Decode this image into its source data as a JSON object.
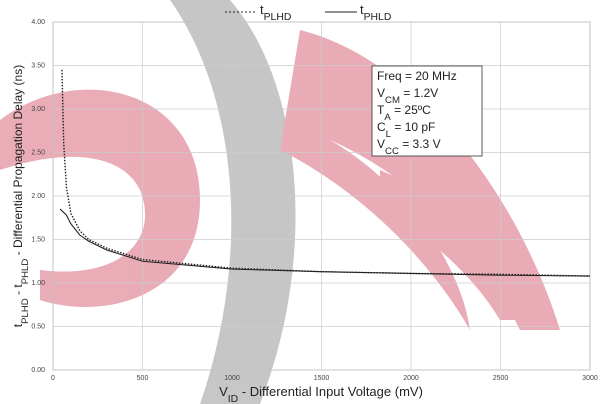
{
  "chart_data": {
    "type": "line",
    "legend_names": [
      [
        "t",
        "PLHD"
      ],
      [
        "t",
        "PHLD"
      ]
    ],
    "xlabel": [
      "V",
      "ID",
      " - Differential Input Voltage (mV)"
    ],
    "ylabel": [
      "t",
      "PLHD",
      " - t",
      "PHLD",
      " - Differential Propagation Delay (ns)"
    ],
    "annotation": [
      [
        "Freq = 20 MHz"
      ],
      [
        "V",
        "CM",
        " = 1.2V"
      ],
      [
        "T",
        "A",
        " = 25ºC"
      ],
      [
        "C",
        "L",
        " = 10 pF"
      ],
      [
        "V",
        "CC",
        " = 3.3 V"
      ]
    ],
    "series": [
      {
        "color": "#222222",
        "dash": "dotted",
        "x": [
          50,
          60,
          75,
          100,
          150,
          200,
          300,
          500,
          1000,
          1500,
          2000,
          2500,
          3000
        ],
        "values": [
          3.45,
          2.6,
          2.1,
          1.8,
          1.6,
          1.5,
          1.4,
          1.27,
          1.17,
          1.13,
          1.11,
          1.1,
          1.08
        ]
      },
      {
        "color": "#222222",
        "dash": "solid",
        "x": [
          40,
          75,
          100,
          150,
          200,
          300,
          500,
          1000,
          1500,
          2000,
          2500,
          3000
        ],
        "values": [
          1.85,
          1.78,
          1.68,
          1.55,
          1.48,
          1.38,
          1.25,
          1.16,
          1.13,
          1.11,
          1.09,
          1.08
        ]
      }
    ],
    "xlim": [
      0,
      3000
    ],
    "xticks": [
      0,
      500,
      1000,
      1500,
      2000,
      2500,
      3000
    ],
    "ylim": [
      0,
      4
    ],
    "yticks": [
      {
        "value": 0,
        "label": "0.00"
      },
      {
        "value": 0.5,
        "label": "0.50"
      },
      {
        "value": 1,
        "label": "1.00"
      },
      {
        "value": 1.5,
        "label": "1.50"
      },
      {
        "value": 2,
        "label": "2.00"
      },
      {
        "value": 2.5,
        "label": "2.50"
      },
      {
        "value": 3,
        "label": "3.00"
      },
      {
        "value": 3.5,
        "label": "3.50"
      },
      {
        "value": 4,
        "label": "4.00"
      }
    ],
    "grid": true
  }
}
